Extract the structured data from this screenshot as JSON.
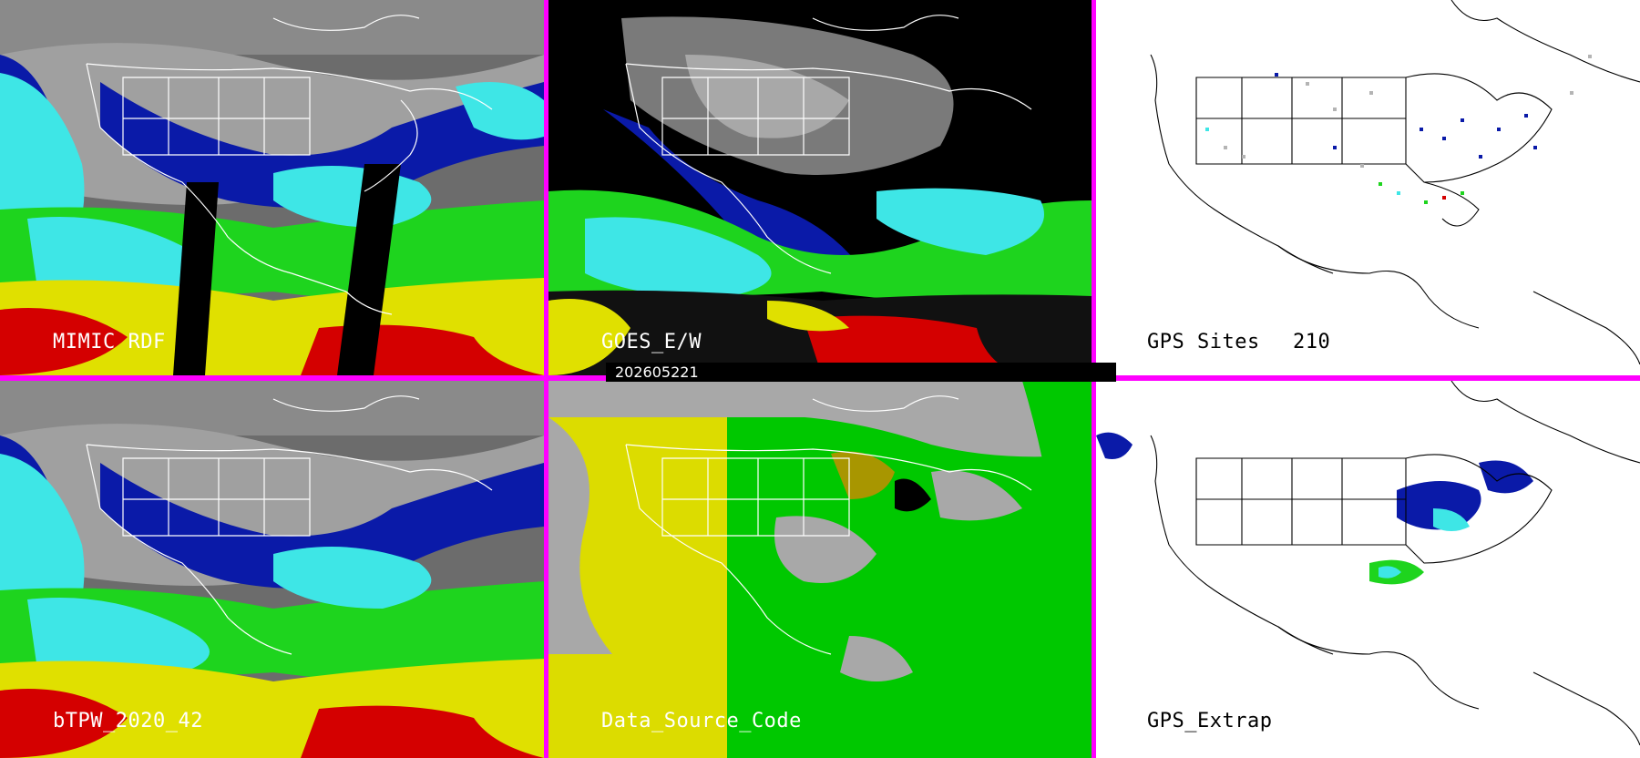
{
  "timestamp": "202605221",
  "panels": [
    {
      "id": "mimic",
      "label": "MIMIC RDF"
    },
    {
      "id": "goes",
      "label": "GOES_E/W"
    },
    {
      "id": "gps_sites",
      "label": "GPS Sites",
      "count": "210"
    },
    {
      "id": "btpw",
      "label": "bTPW_2020_42"
    },
    {
      "id": "source",
      "label": "Data_Source_Code"
    },
    {
      "id": "gps_extrap",
      "label": "GPS_Extrap"
    }
  ],
  "colors": {
    "border": "#ff00ff",
    "water_red": "#d40000",
    "water_yellow": "#e0e000",
    "water_green": "#1ed41e",
    "water_cyan": "#3ee6e6",
    "water_blue": "#0a1aa8",
    "gray_high": "#b4b4b4",
    "source_gray": "#a8a8a8",
    "source_yellow": "#dcdc00",
    "source_green": "#00c800",
    "source_olive": "#a89600"
  }
}
